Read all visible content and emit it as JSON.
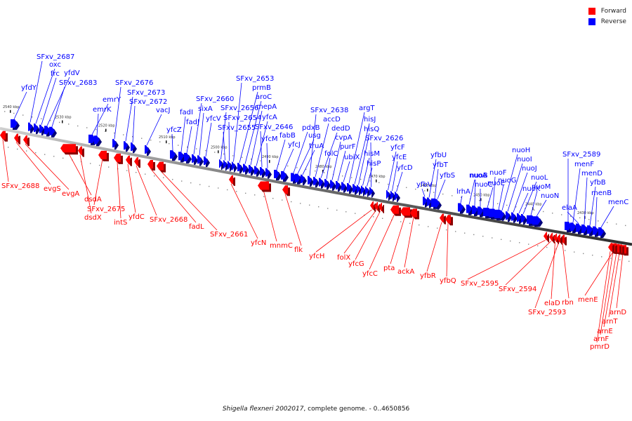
{
  "legend": {
    "forward_label": "Forward",
    "reverse_label": "Reverse",
    "forward_color": "#ff0000",
    "reverse_color": "#0000ff"
  },
  "caption": {
    "organism": "Shigella flexneri 2002017",
    "rest": ", complete genome. - 0..4650856"
  },
  "scale_labels": [
    "2540 kbp",
    "2530 kbp",
    "2520 kbp",
    "2510 kbp",
    "2500 kbp",
    "2490 kbp",
    "2480 kbp",
    "2470 kbp",
    "2460 kbp",
    "2450 kbp",
    "2440 kbp",
    "2430 kbp"
  ],
  "reverse_genes": [
    "yfdY",
    "SFxv_2687",
    "oxc",
    "frc",
    "yfdV",
    "SFxv_2683",
    "emrY",
    "emrK",
    "SFxv_2676",
    "SFxv_2673",
    "SFxv_2672",
    "vacJ",
    "yfcZ",
    "fadI",
    "fadJ",
    "SFxv_2660",
    "sixA",
    "yfcV",
    "SFxv_2656",
    "SFxv_2655",
    "SFxv_2654",
    "SFxv_2653",
    "prmB",
    "aroC",
    "mepA",
    "yfcA",
    "SFxv_2646",
    "yfcM",
    "fabB",
    "yfcJ",
    "pdxB",
    "usg",
    "truA",
    "SFxv_2638",
    "accD",
    "dedD",
    "folC",
    "cvpA",
    "purF",
    "ubiX",
    "argT",
    "hisJ",
    "hisQ",
    "hisM",
    "hisP",
    "SFxv_2626",
    "yfcF",
    "yfcE",
    "yfcD",
    "yfbV",
    "yfbU",
    "yfbT",
    "yfbS",
    "lrhA",
    "nuoA",
    "nuoB",
    "nuoC",
    "nuoE",
    "nuoF",
    "nuoG",
    "nuoH",
    "nuoI",
    "nuoJ",
    "nuoK",
    "nuoL",
    "nuoM",
    "nuoN",
    "SFxv_2589",
    "menF",
    "elaA",
    "menD",
    "yfbB",
    "menB",
    "menC"
  ],
  "forward_genes": [
    "SFxv_2688",
    "evgS",
    "evgA",
    "dsdA",
    "dsdX",
    "SFxv_2675",
    "intS",
    "yfdC",
    "SFxv_2668",
    "fadL",
    "SFxv_2661",
    "yfcN",
    "mnmC",
    "flk",
    "yfcH",
    "folX",
    "yfcG",
    "yfcC",
    "pta",
    "ackA",
    "yfbR",
    "yfbQ",
    "SFxv_2595",
    "SFxv_2594",
    "elaD",
    "rbn",
    "SFxv_2593",
    "menE",
    "arnD",
    "arnT",
    "arnE",
    "arnF",
    "pmrD"
  ]
}
